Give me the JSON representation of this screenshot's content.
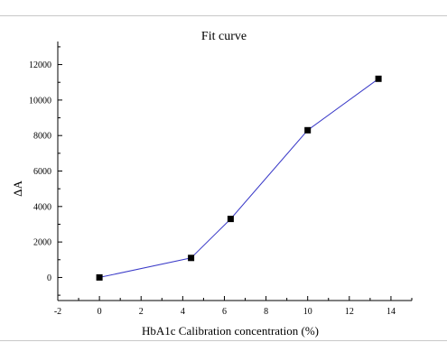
{
  "chart_data": {
    "type": "line",
    "title": "Fit curve",
    "xlabel": "HbA1c Calibration concentration (%)",
    "ylabel": "ΔA",
    "xlim": [
      -2,
      15
    ],
    "ylim": [
      -1300,
      13300
    ],
    "xticks": [
      -2,
      0,
      2,
      4,
      6,
      8,
      10,
      12,
      14
    ],
    "yticks": [
      0,
      2000,
      4000,
      6000,
      8000,
      10000,
      12000
    ],
    "grid": false,
    "colors": {
      "line": "#3a3ac8",
      "marker": "#000000",
      "axis": "#000000"
    },
    "series": [
      {
        "x": [
          0,
          4.4,
          6.3,
          10.0,
          13.4
        ],
        "y": [
          0,
          1100,
          3300,
          8300,
          11200
        ]
      }
    ]
  }
}
